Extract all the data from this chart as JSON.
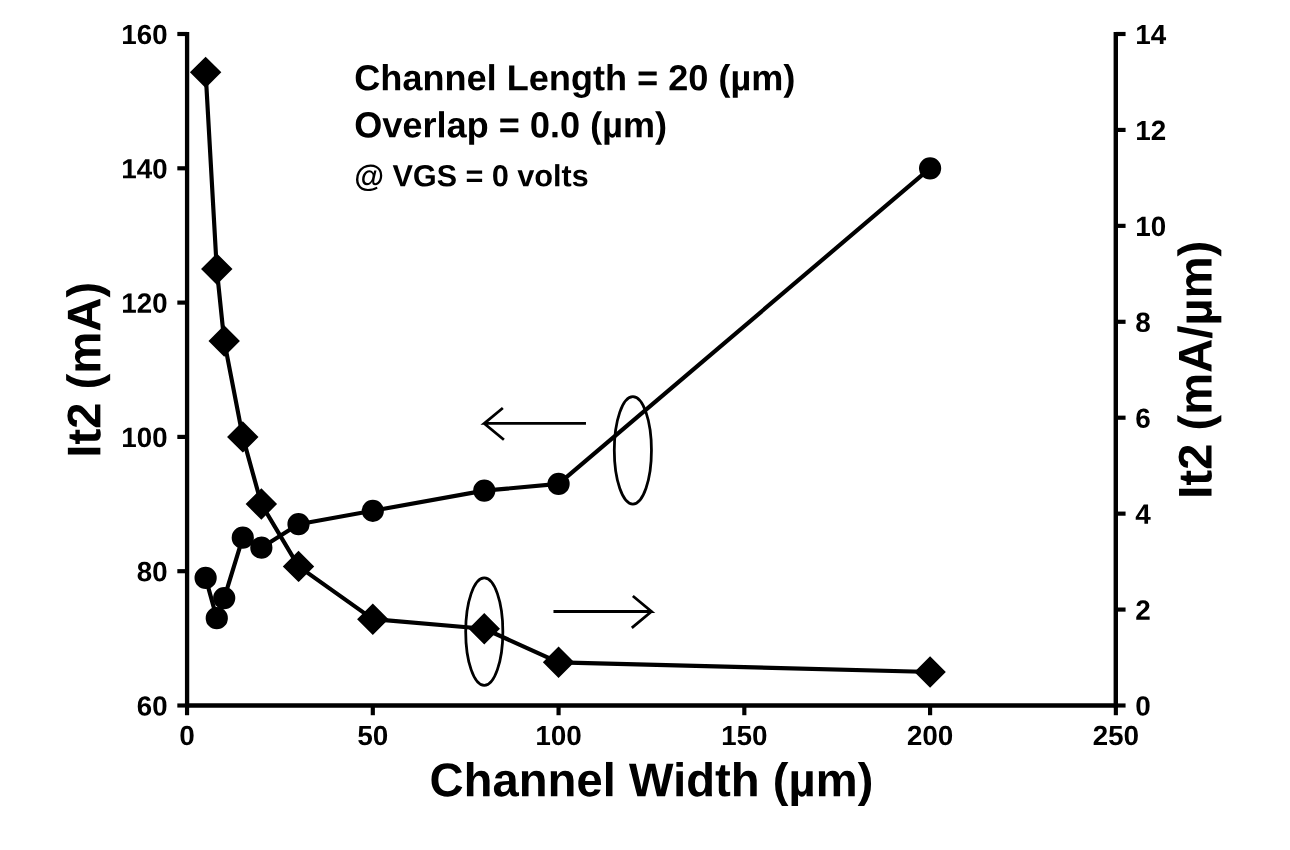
{
  "chart_data": {
    "type": "line",
    "xlabel": "Channel Width (µm)",
    "ylabel": "It2 (mA)",
    "y2label": "It2 (mA/µm)",
    "x": [
      5,
      8,
      10,
      15,
      20,
      30,
      50,
      80,
      100,
      200
    ],
    "series": [
      {
        "color": "#000000",
        "marker": "circle",
        "values": [
          79,
          73,
          76,
          85,
          83.5,
          87,
          89,
          92,
          93,
          140
        ]
      },
      {
        "color": "#000000",
        "marker": "diamond",
        "axis": "y2",
        "values": [
          13.2,
          9.1,
          7.6,
          5.6,
          4.2,
          2.9,
          1.8,
          1.6,
          0.9,
          0.7
        ]
      }
    ],
    "xlim": [
      0,
      250
    ],
    "xticks": [
      0,
      50,
      100,
      150,
      200,
      250
    ],
    "ylim": [
      60,
      160
    ],
    "yticks": [
      60,
      80,
      100,
      120,
      140,
      160
    ],
    "y2lim": [
      0,
      14
    ],
    "y2ticks": [
      0,
      2,
      4,
      6,
      8,
      10,
      12,
      14
    ],
    "annotations": [
      "Channel Length = 20 (µm)",
      "Overlap = 0.0 (µm)",
      "@ VGS = 0 volts"
    ],
    "grid": false,
    "legend": false
  }
}
